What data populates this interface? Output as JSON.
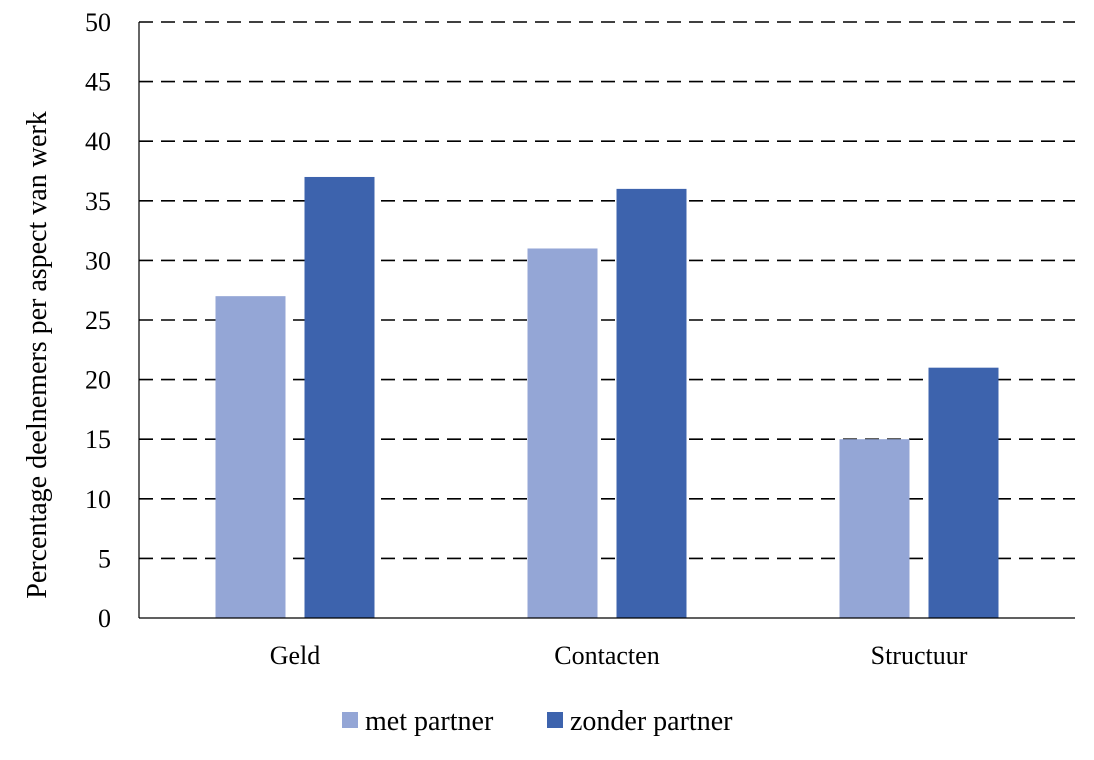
{
  "chart_data": {
    "type": "bar",
    "categories": [
      "Geld",
      "Contacten",
      "Structuur"
    ],
    "series": [
      {
        "name": "met partner",
        "values": [
          27,
          31,
          15
        ],
        "color": "#94a6d6"
      },
      {
        "name": "zonder partner",
        "values": [
          37,
          36,
          21
        ],
        "color": "#3d63ad"
      }
    ],
    "ylabel": "Percentage deelnemers per aspect van werk",
    "xlabel": "",
    "ylim": [
      0,
      50
    ],
    "yticks": [
      0,
      5,
      10,
      15,
      20,
      25,
      30,
      35,
      40,
      45,
      50
    ],
    "grid": "dashed horizontal",
    "legend": "bottom"
  }
}
